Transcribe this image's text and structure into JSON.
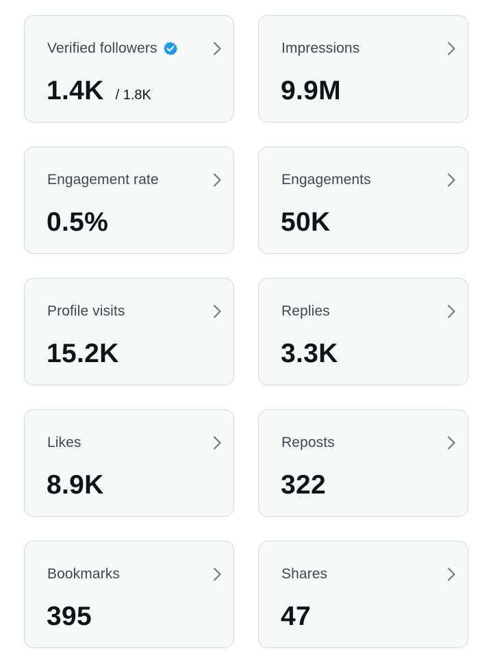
{
  "colors": {
    "card_background": "#f7f9f9",
    "card_border": "#cfd9de",
    "label_text": "#3b4852",
    "value_text": "#0f1419",
    "chevron": "#536471",
    "verified_badge": "#1d9bf0"
  },
  "icons": {
    "chevron": "chevron-right-icon",
    "verified": "verified-badge-icon"
  },
  "metrics": [
    {
      "label": "Verified followers",
      "value": "1.4K",
      "subvalue": "/ 1.8K",
      "verified": true
    },
    {
      "label": "Impressions",
      "value": "9.9M"
    },
    {
      "label": "Engagement rate",
      "value": "0.5%"
    },
    {
      "label": "Engagements",
      "value": "50K"
    },
    {
      "label": "Profile visits",
      "value": "15.2K"
    },
    {
      "label": "Replies",
      "value": "3.3K"
    },
    {
      "label": "Likes",
      "value": "8.9K"
    },
    {
      "label": "Reposts",
      "value": "322"
    },
    {
      "label": "Bookmarks",
      "value": "395"
    },
    {
      "label": "Shares",
      "value": "47"
    }
  ]
}
